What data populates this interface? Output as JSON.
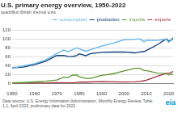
{
  "chart_data": {
    "type": "line",
    "title": "U.S. primary energy overview, 1950-2022",
    "subtitle": "quadrillion British thermal units",
    "annotations": [
      "Data source: U.S. Energy Information Administration, Monthly Energy Review, Table 1.1, April 2023, preliminary data for 2022",
      "eia"
    ],
    "x": [
      1950,
      1955,
      1960,
      1965,
      1970,
      1973,
      1975,
      1977,
      1979,
      1980,
      1983,
      1985,
      1990,
      1995,
      2000,
      2005,
      2007,
      2009,
      2010,
      2015,
      2019,
      2020,
      2021,
      2022
    ],
    "series": [
      {
        "name": "consumption",
        "color": "#5fb4e5",
        "values": [
          34.6,
          40.2,
          45.1,
          54.0,
          67.8,
          75.7,
          71.9,
          76.3,
          80.9,
          78.1,
          73.1,
          76.4,
          84.4,
          91.0,
          98.7,
          100.1,
          101.0,
          94.5,
          97.5,
          97.4,
          100.2,
          92.9,
          97.3,
          100.4
        ]
      },
      {
        "name": "production",
        "color": "#0a3c78",
        "values": [
          35.5,
          37.4,
          42.8,
          50.7,
          63.5,
          63.6,
          61.4,
          61.0,
          63.8,
          67.2,
          63.1,
          67.7,
          70.7,
          71.2,
          71.3,
          69.4,
          71.4,
          72.6,
          74.7,
          88.0,
          101.0,
          95.7,
          97.8,
          102.9
        ]
      },
      {
        "name": "imports",
        "color": "#5d9732",
        "values": [
          1.9,
          2.8,
          4.2,
          5.9,
          8.3,
          14.6,
          14.0,
          19.9,
          19.6,
          15.8,
          12.0,
          12.1,
          18.8,
          22.3,
          28.9,
          34.7,
          34.7,
          29.7,
          29.9,
          23.8,
          22.8,
          20.0,
          21.4,
          21.3
        ]
      },
      {
        "name": "exports",
        "color": "#a33340",
        "values": [
          1.5,
          2.3,
          1.5,
          1.8,
          2.6,
          2.0,
          2.3,
          2.1,
          2.9,
          3.7,
          3.7,
          4.2,
          4.8,
          4.5,
          4.0,
          4.4,
          5.4,
          6.9,
          8.2,
          17.2,
          23.5,
          23.5,
          25.3,
          27.6
        ]
      }
    ],
    "xlim": [
      1950,
      2022
    ],
    "xticks": [
      1950,
      1960,
      1970,
      1980,
      1990,
      2000,
      2010,
      2020
    ],
    "ylim": [
      0,
      120
    ],
    "yticks": [
      0,
      20,
      40,
      60,
      80,
      100,
      120
    ],
    "grid": true,
    "legend": "top-right"
  }
}
